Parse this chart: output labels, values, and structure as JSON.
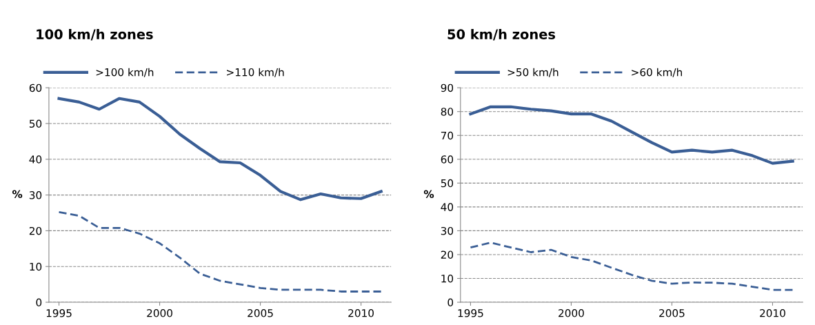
{
  "chart_data": [
    {
      "type": "line",
      "title": "100 km/h zones",
      "ylabel": "%",
      "x": [
        1995,
        1996,
        1997,
        1998,
        1999,
        2000,
        2001,
        2002,
        2003,
        2004,
        2005,
        2006,
        2007,
        2008,
        2009,
        2010,
        2011
      ],
      "series": [
        {
          "name": ">100 km/h",
          "color": "#3a5e95",
          "line_style": "solid",
          "values": [
            57,
            56,
            54,
            57,
            56,
            52,
            47,
            43,
            39.3,
            39,
            35.5,
            31,
            28.7,
            30.3,
            29.2,
            29,
            31
          ]
        },
        {
          "name": ">110 km/h",
          "color": "#3a5e95",
          "line_style": "dashed",
          "values": [
            25.2,
            24.2,
            20.8,
            20.8,
            19.2,
            16.5,
            12.5,
            8,
            6,
            5,
            4,
            3.5,
            3.5,
            3.5,
            3,
            3,
            3
          ]
        }
      ],
      "xlim": [
        1994.5,
        2011.5
      ],
      "xticks": [
        1995,
        2000,
        2005,
        2010
      ],
      "ylim": [
        0,
        60
      ],
      "yticks": [
        0,
        10,
        20,
        30,
        40,
        50,
        60
      ],
      "grid": "y",
      "legend": "top left",
      "marker": "none"
    },
    {
      "type": "line",
      "title": "50 km/h zones",
      "ylabel": "%",
      "x": [
        1995,
        1996,
        1997,
        1998,
        1999,
        2000,
        2001,
        2002,
        2003,
        2004,
        2005,
        2006,
        2007,
        2008,
        2009,
        2010,
        2011
      ],
      "series": [
        {
          "name": ">50 km/h",
          "color": "#3a5e95",
          "line_style": "solid",
          "values": [
            79,
            82,
            82,
            81,
            80.3,
            79,
            79,
            76,
            71.5,
            67,
            63,
            63.8,
            63,
            63.8,
            61.5,
            58.3,
            59.2
          ]
        },
        {
          "name": ">60 km/h",
          "color": "#3a5e95",
          "line_style": "dashed",
          "values": [
            23,
            25,
            23,
            21,
            22,
            19,
            17.5,
            14.5,
            11.5,
            9,
            7.8,
            8.3,
            8.2,
            7.8,
            6.5,
            5.2,
            5.2
          ]
        }
      ],
      "xlim": [
        1994.5,
        2011.5
      ],
      "xticks": [
        1995,
        2000,
        2005,
        2010
      ],
      "ylim": [
        0,
        90
      ],
      "yticks": [
        0,
        10,
        20,
        30,
        40,
        50,
        60,
        70,
        80,
        90
      ],
      "grid": "y",
      "legend": "top left",
      "marker": "none"
    }
  ]
}
